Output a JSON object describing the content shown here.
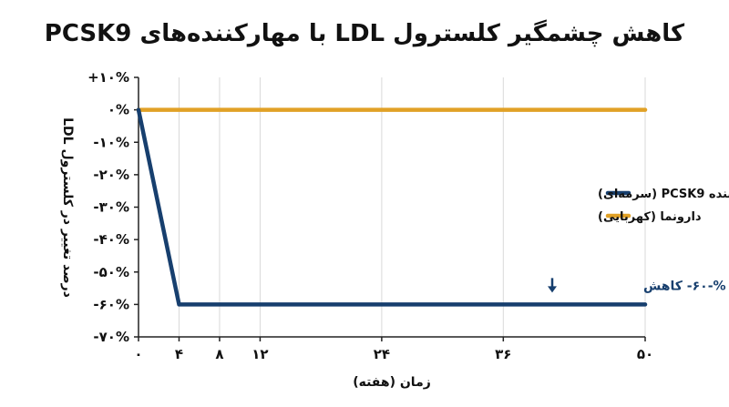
{
  "chart_data": {
    "type": "line",
    "title": "کاهش چشمگیر کلسترول LDL با مهارکننده‌های PCSK9",
    "xlabel": "زمان (هفته)",
    "ylabel": "درصد تغییر در کلسترول LDL",
    "x_ticks": [
      "۰",
      "۴",
      "۸",
      "۱۲",
      "۲۴",
      "۳۶",
      "۵۰"
    ],
    "x_tick_values": [
      0,
      4,
      8,
      12,
      24,
      36,
      50
    ],
    "y_ticks": [
      "+۱۰%",
      "۰%",
      "-۱۰%",
      "-۲۰%",
      "-۳۰%",
      "-۴۰%",
      "-۵۰%",
      "-۶۰%",
      "-۷۰%"
    ],
    "y_tick_values": [
      10,
      0,
      -10,
      -20,
      -30,
      -40,
      -50,
      -60,
      -70
    ],
    "xlim": [
      0,
      50
    ],
    "ylim": [
      -70,
      10
    ],
    "grid": "vertical",
    "legend_position": "right",
    "series": [
      {
        "name": "مهارکننده PCSK9 (سرمه‌ای)",
        "color": "#173f6e",
        "x": [
          0,
          4,
          50
        ],
        "y": [
          0,
          -60,
          -60
        ]
      },
      {
        "name": "دارونما (کهربایی)",
        "color": "#e1a126",
        "x": [
          0,
          50
        ],
        "y": [
          0,
          0
        ]
      }
    ],
    "annotation": {
      "text": "%-۶۰- کاهش",
      "arrow": "down-arrow-icon",
      "color": "#173f6e",
      "x": 50,
      "y": -60
    }
  }
}
